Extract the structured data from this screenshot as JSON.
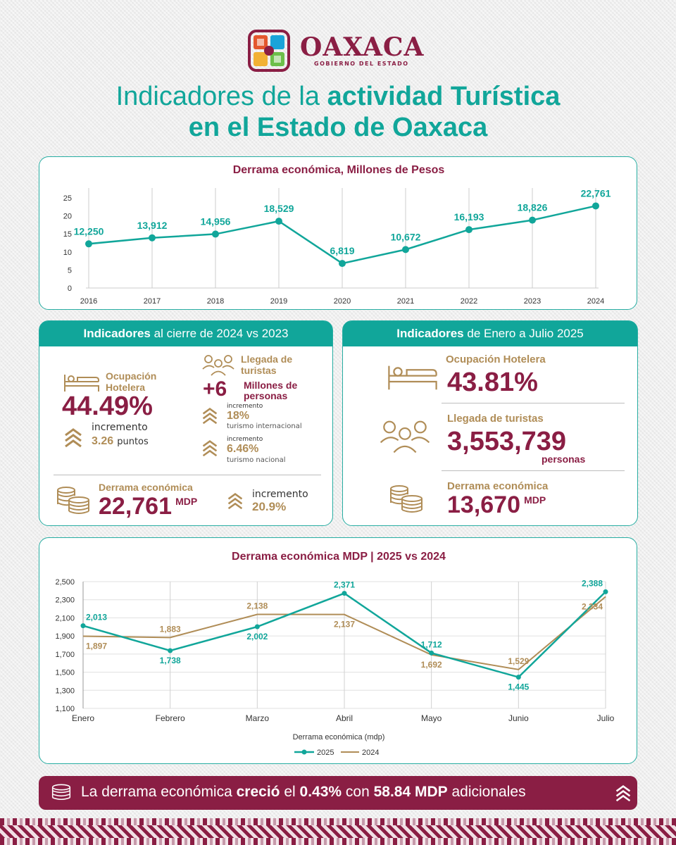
{
  "brand": {
    "name": "OAXACA",
    "subtitle": "GOBIERNO DEL ESTADO",
    "colors": {
      "maroon": "#8a1e44",
      "teal": "#11a69a",
      "gold": "#b08d57"
    }
  },
  "title": {
    "line1_a": "Indicadores de la ",
    "line1_b": "actividad Turística",
    "line2": "en el Estado de Oaxaca"
  },
  "chart_data": [
    {
      "type": "line",
      "title": "Derrama económica, Millones de Pesos",
      "categories": [
        "2016",
        "2017",
        "2018",
        "2019",
        "2020",
        "2021",
        "2022",
        "2023",
        "2024"
      ],
      "values": [
        12.25,
        13.912,
        14.956,
        18.529,
        6.819,
        10.672,
        16.193,
        18.826,
        22.761
      ],
      "data_labels": [
        "12,250",
        "13,912",
        "14,956",
        "18,529",
        "6,819",
        "10,672",
        "16,193",
        "18,826",
        "22,761"
      ],
      "yticks": [
        "0",
        "5",
        "10",
        "15",
        "20",
        "25"
      ],
      "ylim": [
        0,
        25
      ],
      "grid": "vertical"
    },
    {
      "type": "line",
      "title": "Derrama económica MDP | 2025 vs 2024",
      "xlabel": "Derrama económica (mdp)",
      "categories": [
        "Enero",
        "Febrero",
        "Marzo",
        "Abril",
        "Mayo",
        "Junio",
        "Julio"
      ],
      "yticks": [
        "1,100",
        "1,300",
        "1,500",
        "1,700",
        "1,900",
        "2,100",
        "2,300",
        "2,500"
      ],
      "ylim": [
        1100,
        2500
      ],
      "series": [
        {
          "name": "2025",
          "color": "#11a69a",
          "values": [
            2013,
            1738,
            2002,
            2371,
            1712,
            1445,
            2388
          ],
          "labels": [
            "2,013",
            "1,738",
            "2,002",
            "2,371",
            "1,712",
            "1,445",
            "2,388"
          ]
        },
        {
          "name": "2024",
          "color": "#b08d57",
          "values": [
            1897,
            1883,
            2138,
            2137,
            1692,
            1529,
            2334
          ],
          "labels": [
            "1,897",
            "1,883",
            "2,138",
            "2,137",
            "1,692",
            "1,529",
            "2,334"
          ]
        }
      ],
      "legend": "bottom"
    }
  ],
  "panel_2024": {
    "head_bold": "Indicadores",
    "head_rest": " al cierre de 2024 vs 2023",
    "ocupacion_label": "Ocupación Hotelera",
    "ocupacion_value": "44.49%",
    "ocupacion_inc_label": "incremento",
    "ocupacion_inc_value": "3.26",
    "ocupacion_inc_unit": "puntos",
    "llegada_label": "Llegada de turistas",
    "llegada_value": "+6",
    "llegada_unit": "Millones de personas",
    "intl_label": "incremento",
    "intl_value": "18%",
    "intl_desc": "turismo internacional",
    "nac_label": "incremento",
    "nac_value": "6.46%",
    "nac_desc": "turismo nacional",
    "derrama_label": "Derrama económica",
    "derrama_value": "22,761",
    "derrama_unit": "MDP",
    "derrama_inc_label": "incremento",
    "derrama_inc_value": "20.9%"
  },
  "panel_2025": {
    "head_bold": "Indicadores",
    "head_rest": " de Enero a Julio 2025",
    "ocupacion_label": "Ocupación Hotelera",
    "ocupacion_value": "43.81%",
    "llegada_label": "Llegada de turistas",
    "llegada_value": "3,553,739",
    "llegada_unit": "personas",
    "derrama_label": "Derrama económica",
    "derrama_value": "13,670",
    "derrama_unit": "MDP"
  },
  "banner": {
    "a": "La derrama económica ",
    "b": "creció",
    "c": " el ",
    "d": "0.43%",
    "e": " con ",
    "f": "58.84 MDP",
    "g": " adicionales"
  }
}
